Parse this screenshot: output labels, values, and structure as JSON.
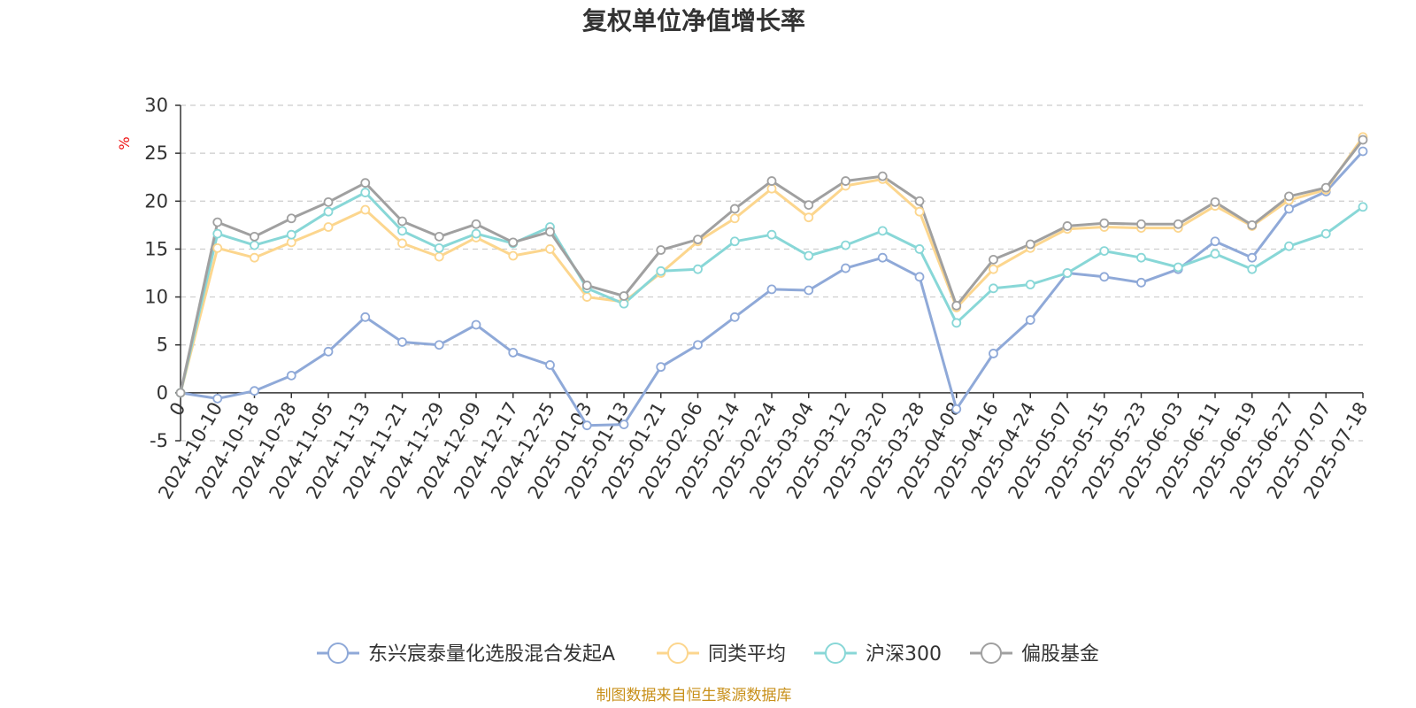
{
  "chart_data": {
    "type": "line",
    "title": "复权单位净值增长率",
    "ylabel": "%",
    "xlabel": "",
    "ylim": [
      -5,
      30
    ],
    "yticks": [
      -5,
      0,
      5,
      10,
      15,
      20,
      25,
      30
    ],
    "grid": true,
    "legend_position": "bottom",
    "x_tick_labels": [
      "0",
      "2024-10-10",
      "2024-10-18",
      "2024-10-28",
      "2024-11-05",
      "2024-11-13",
      "2024-11-21",
      "2024-11-29",
      "2024-12-09",
      "2024-12-17",
      "2024-12-25",
      "2025-01-03",
      "2025-01-13",
      "2025-01-21",
      "2025-02-06",
      "2025-02-14",
      "2025-02-24",
      "2025-03-04",
      "2025-03-12",
      "2025-03-20",
      "2025-03-28",
      "2025-04-08",
      "2025-04-16",
      "2025-04-24",
      "2025-05-07",
      "2025-05-15",
      "2025-05-23",
      "2025-06-03",
      "2025-06-11",
      "2025-06-19",
      "2025-06-27",
      "2025-07-07",
      "2025-07-18"
    ],
    "x": [
      "0",
      "2024-10-10",
      "2024-10-18",
      "2024-10-28",
      "2024-11-05",
      "2024-11-13",
      "2024-11-21",
      "2024-11-29",
      "2024-12-09",
      "2024-12-17",
      "2024-12-25",
      "2025-01-03",
      "2025-01-13",
      "2025-01-21",
      "2025-02-06",
      "2025-02-14",
      "2025-02-24",
      "2025-03-04",
      "2025-03-12",
      "2025-03-20",
      "2025-03-28",
      "2025-04-08",
      "2025-04-16",
      "2025-04-24",
      "2025-05-07",
      "2025-05-15",
      "2025-05-23",
      "2025-06-03",
      "2025-06-11",
      "2025-06-19",
      "2025-06-27",
      "2025-07-07",
      "2025-07-18"
    ],
    "series": [
      {
        "name": "东兴宸泰量化选股混合发起A",
        "color": "#8fa9d8",
        "values": [
          0,
          -0.6,
          0.2,
          1.8,
          4.3,
          7.9,
          5.3,
          5.0,
          7.1,
          4.2,
          2.9,
          -3.4,
          -3.3,
          2.7,
          5.0,
          7.9,
          10.8,
          10.7,
          13.0,
          14.1,
          12.1,
          -1.7,
          4.1,
          7.6,
          12.5,
          12.1,
          11.5,
          12.9,
          15.8,
          14.1,
          19.2,
          21.0,
          25.2
        ]
      },
      {
        "name": "同类平均",
        "color": "#fcd68e",
        "values": [
          0,
          15.1,
          14.1,
          15.7,
          17.3,
          19.1,
          15.6,
          14.2,
          16.2,
          14.3,
          15.0,
          10.0,
          9.5,
          12.5,
          15.8,
          18.2,
          21.3,
          18.3,
          21.6,
          22.3,
          18.9,
          8.9,
          12.9,
          15.1,
          17.1,
          17.3,
          17.2,
          17.2,
          19.5,
          17.4,
          20.1,
          21.2,
          26.7
        ]
      },
      {
        "name": "沪深300",
        "color": "#88d7d7",
        "values": [
          0,
          16.6,
          15.4,
          16.5,
          18.9,
          20.9,
          16.9,
          15.1,
          16.6,
          15.6,
          17.3,
          10.9,
          9.3,
          12.7,
          12.9,
          15.8,
          16.5,
          14.3,
          15.4,
          16.9,
          15.0,
          7.3,
          10.9,
          11.3,
          12.5,
          14.8,
          14.1,
          13.1,
          14.5,
          12.9,
          15.3,
          16.6,
          19.4
        ]
      },
      {
        "name": "偏股基金",
        "color": "#a0a0a0",
        "values": [
          0,
          17.8,
          16.3,
          18.2,
          19.9,
          21.9,
          17.9,
          16.3,
          17.6,
          15.7,
          16.8,
          11.2,
          10.1,
          14.9,
          16.0,
          19.2,
          22.1,
          19.6,
          22.1,
          22.6,
          20.0,
          9.1,
          13.9,
          15.5,
          17.4,
          17.7,
          17.6,
          17.6,
          19.9,
          17.5,
          20.5,
          21.4,
          26.4
        ]
      }
    ]
  },
  "source_note": "制图数据来自恒生聚源数据库"
}
